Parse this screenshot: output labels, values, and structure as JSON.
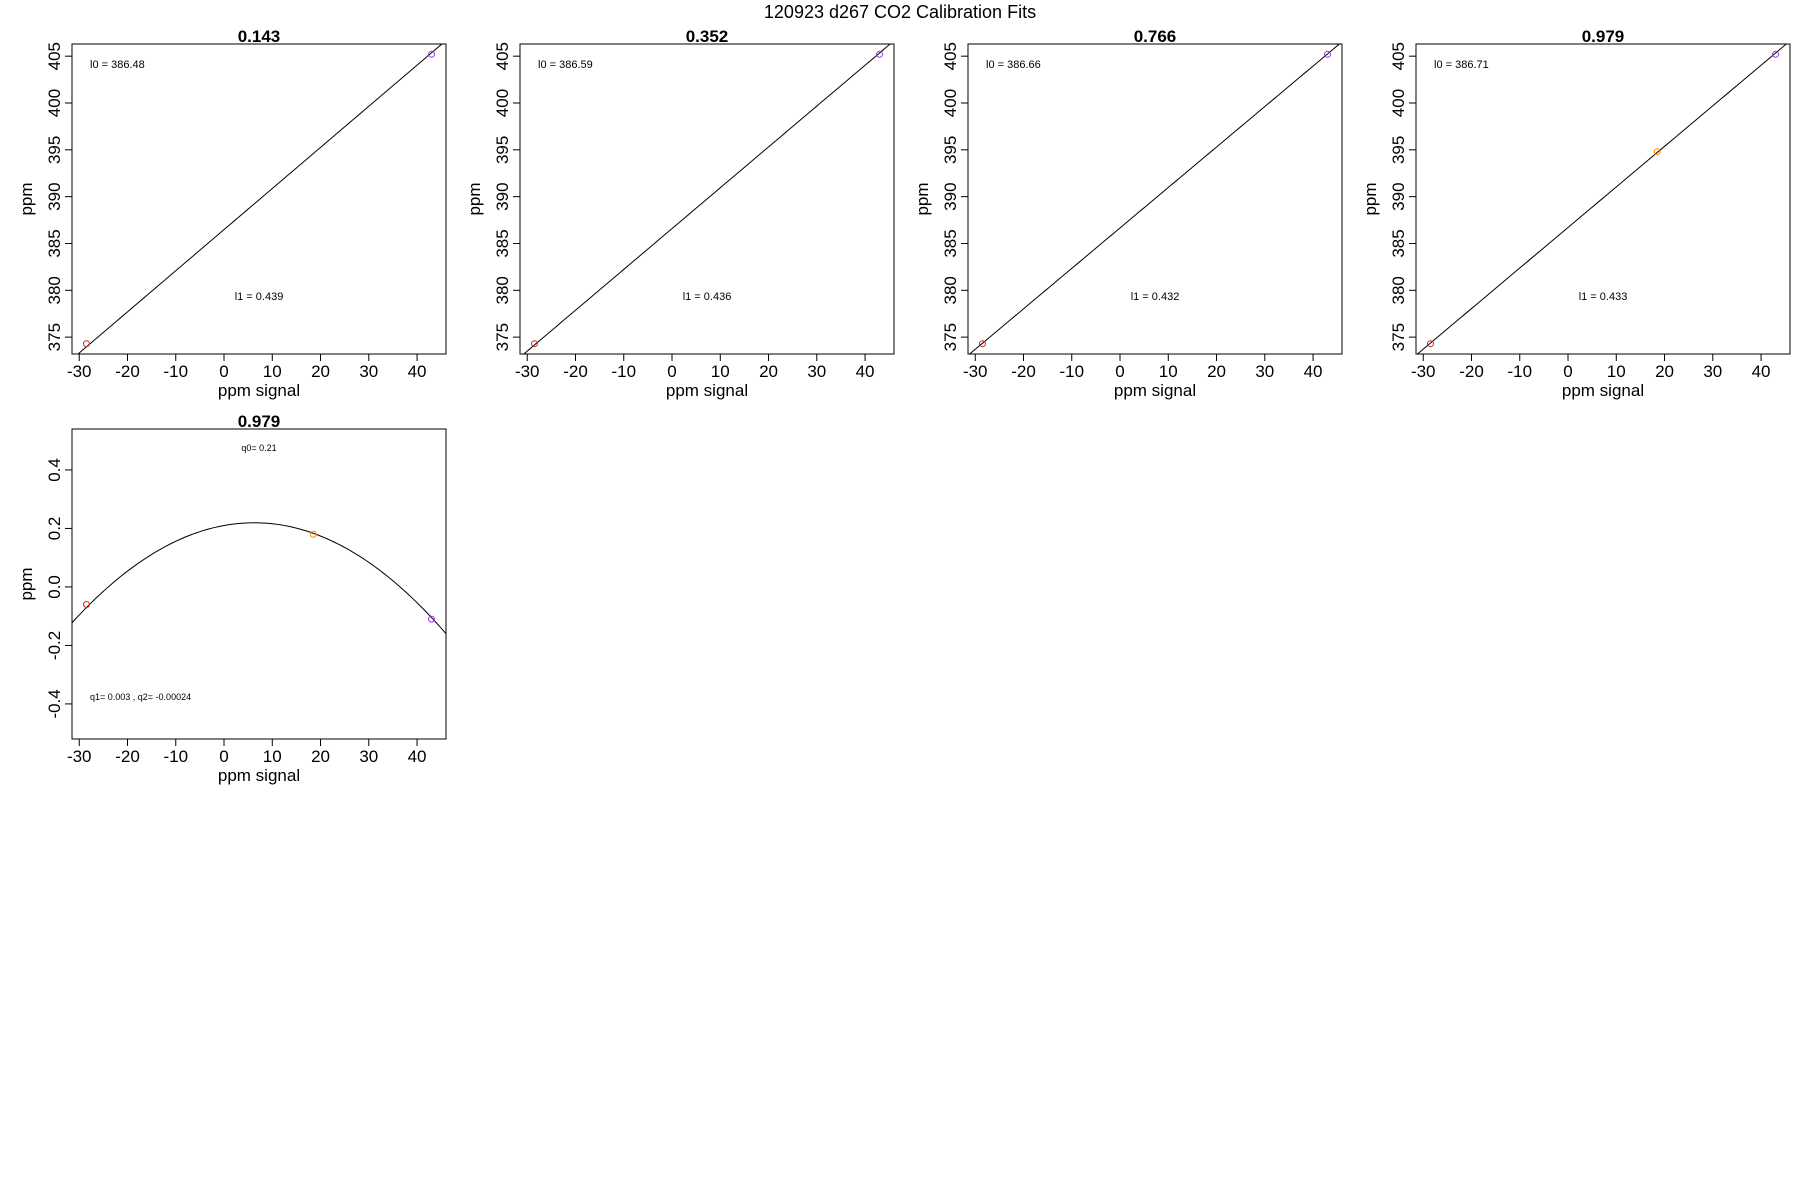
{
  "figure_title": "120923   d267   CO2 Calibration Fits",
  "chart_data": [
    {
      "type": "line",
      "title": "0.143",
      "xlabel": "ppm signal",
      "ylabel": "ppm",
      "xlim": [
        -31.5,
        46
      ],
      "ylim": [
        373.2,
        406.3
      ],
      "xticks": [
        -30,
        -20,
        -10,
        0,
        10,
        20,
        30,
        40
      ],
      "yticks": [
        375,
        380,
        385,
        390,
        395,
        400,
        405
      ],
      "fit": {
        "kind": "linear",
        "intercept": 386.48,
        "slope": 0.439
      },
      "points": [
        {
          "x": -28.5,
          "y": 374.3,
          "color": "#d62728"
        },
        {
          "x": 43.0,
          "y": 405.2,
          "color": "#9b30ff"
        }
      ],
      "annotations": {
        "top": "l0 =  386.48",
        "bottom": "l1 =  0.439"
      }
    },
    {
      "type": "line",
      "title": "0.352",
      "xlabel": "ppm signal",
      "ylabel": "ppm",
      "xlim": [
        -31.5,
        46
      ],
      "ylim": [
        373.2,
        406.3
      ],
      "xticks": [
        -30,
        -20,
        -10,
        0,
        10,
        20,
        30,
        40
      ],
      "yticks": [
        375,
        380,
        385,
        390,
        395,
        400,
        405
      ],
      "fit": {
        "kind": "linear",
        "intercept": 386.59,
        "slope": 0.436
      },
      "points": [
        {
          "x": -28.5,
          "y": 374.3,
          "color": "#d62728"
        },
        {
          "x": 43.0,
          "y": 405.2,
          "color": "#9b30ff"
        }
      ],
      "annotations": {
        "top": "l0 =  386.59",
        "bottom": "l1 =  0.436"
      }
    },
    {
      "type": "line",
      "title": "0.766",
      "xlabel": "ppm signal",
      "ylabel": "ppm",
      "xlim": [
        -31.5,
        46
      ],
      "ylim": [
        373.2,
        406.3
      ],
      "xticks": [
        -30,
        -20,
        -10,
        0,
        10,
        20,
        30,
        40
      ],
      "yticks": [
        375,
        380,
        385,
        390,
        395,
        400,
        405
      ],
      "fit": {
        "kind": "linear",
        "intercept": 386.66,
        "slope": 0.432
      },
      "points": [
        {
          "x": -28.5,
          "y": 374.3,
          "color": "#d62728"
        },
        {
          "x": 43.0,
          "y": 405.2,
          "color": "#9b30ff"
        }
      ],
      "annotations": {
        "top": "l0 =  386.66",
        "bottom": "l1 =  0.432"
      }
    },
    {
      "type": "line",
      "title": "0.979",
      "xlabel": "ppm signal",
      "ylabel": "ppm",
      "xlim": [
        -31.5,
        46
      ],
      "ylim": [
        373.2,
        406.3
      ],
      "xticks": [
        -30,
        -20,
        -10,
        0,
        10,
        20,
        30,
        40
      ],
      "yticks": [
        375,
        380,
        385,
        390,
        395,
        400,
        405
      ],
      "fit": {
        "kind": "linear",
        "intercept": 386.71,
        "slope": 0.433
      },
      "points": [
        {
          "x": -28.5,
          "y": 374.3,
          "color": "#d62728"
        },
        {
          "x": 18.5,
          "y": 394.8,
          "color": "#ff8c00"
        },
        {
          "x": 43.0,
          "y": 405.2,
          "color": "#9b30ff"
        }
      ],
      "annotations": {
        "top": "l0 =  386.71",
        "bottom": "l1 =  0.433"
      }
    },
    {
      "type": "line",
      "title": "0.979",
      "xlabel": "ppm signal",
      "ylabel": "ppm",
      "xlim": [
        -31.5,
        46
      ],
      "ylim": [
        -0.52,
        0.54
      ],
      "xticks": [
        -30,
        -20,
        -10,
        0,
        10,
        20,
        30,
        40
      ],
      "yticks": [
        -0.4,
        -0.2,
        0.0,
        0.2,
        0.4
      ],
      "ytick_labels": [
        "-0.4",
        "-0.2",
        "0.0",
        "0.2",
        "0.4"
      ],
      "fit": {
        "kind": "quadratic",
        "q0": 0.21,
        "q1": 0.003,
        "q2": -0.00024
      },
      "points": [
        {
          "x": -28.5,
          "y": -0.06,
          "color": "#d62728"
        },
        {
          "x": 18.5,
          "y": 0.18,
          "color": "#ff8c00"
        },
        {
          "x": 43.0,
          "y": -0.11,
          "color": "#9b30ff"
        }
      ],
      "annotations": {
        "top": "q0= 0.21",
        "bottom": "q1= 0.003 , q2= -0.00024"
      }
    }
  ]
}
